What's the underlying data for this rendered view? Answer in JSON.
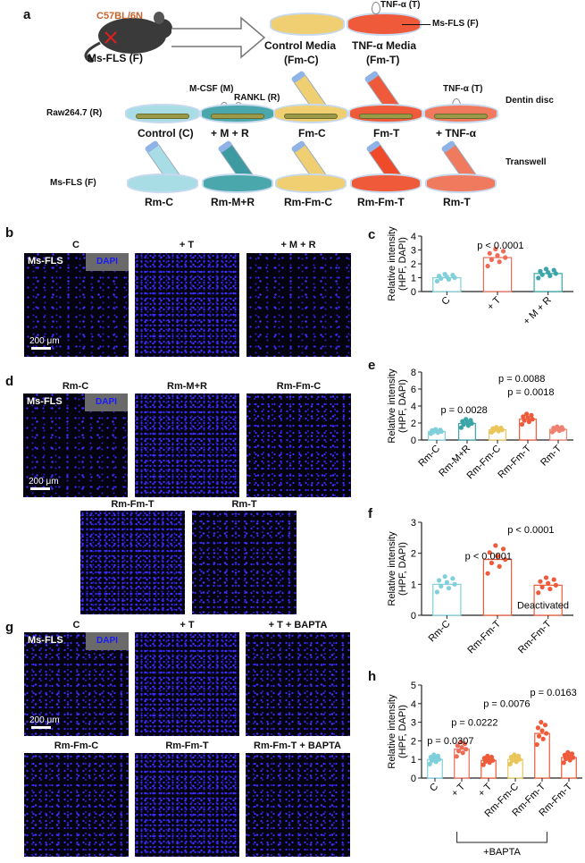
{
  "figure": {
    "panels": {
      "a": "a",
      "b": "b",
      "c": "c",
      "d": "d",
      "e": "e",
      "f": "f",
      "g": "g",
      "h": "h"
    }
  },
  "schematic": {
    "mouse_strain": "C57BL/6N",
    "mouse_label": "Ms-FLS (F)",
    "tnf_top": "TNF-α (T)",
    "msfls_arrow": "Ms-FLS (F)",
    "control_media_1": "Control Media",
    "control_media_2": "(Fm-C)",
    "tnf_media_1": "TNF-α Media",
    "tnf_media_2": "(Fm-T)",
    "mcsf": "M-CSF (M)",
    "rankl": "RANKL (R)",
    "tnf_right": "TNF-α (T)",
    "dentin": "Dentin disc",
    "raw": "Raw264.7 (R)",
    "row2": [
      "Control (C)",
      "+ M + R",
      "Fm-C",
      "Fm-T",
      "+ TNF-α"
    ],
    "msfls_row3": "Ms-FLS (F)",
    "transwell": "Transwell",
    "row3": [
      "Rm-C",
      "Rm-M+R",
      "Rm-Fm-C",
      "Rm-Fm-T",
      "Rm-T"
    ],
    "colors": {
      "control": "#a9dde6",
      "mr": "#4aa8ad",
      "fmc": "#f0cf72",
      "fmt": "#ef5a3a",
      "tnf": "#f07a5e"
    }
  },
  "micrographs": {
    "cell_label": "Ms-FLS",
    "stain_label": "DAPI",
    "scale_label": "200 μm",
    "b": [
      "C",
      "+ T",
      "+ M + R"
    ],
    "d_row1": [
      "Rm-C",
      "Rm-M+R",
      "Rm-Fm-C"
    ],
    "d_row2": [
      "Rm-Fm-T",
      "Rm-T"
    ],
    "g_row1": [
      "C",
      "+ T",
      "+ T + BAPTA"
    ],
    "g_row2": [
      "Rm-Fm-C",
      "Rm-Fm-T",
      "Rm-Fm-T + BAPTA"
    ]
  },
  "chart_data": [
    {
      "panel": "c",
      "type": "bar",
      "ylabel": "Relative intensity (HPF, DAPI)",
      "ylabel_1": "Relative intensity",
      "ylabel_2": "(HPF, DAPI)",
      "categories": [
        "C",
        "+ T",
        "+ M + R"
      ],
      "values": [
        1.0,
        2.45,
        1.3
      ],
      "colors": [
        "#7fd0db",
        "#ee6b56",
        "#3aa5a8"
      ],
      "ylim": [
        0,
        4
      ],
      "yticks": [
        0,
        1,
        2,
        3,
        4
      ],
      "annotations": [
        "p < 0.0001"
      ]
    },
    {
      "panel": "e",
      "type": "bar",
      "ylabel": "Relative intensity (HPF, DAPI)",
      "ylabel_1": "Relative intensity",
      "ylabel_2": "(HPF, DAPI)",
      "categories": [
        "Rm-C",
        "Rm-M+R",
        "Rm-Fm-C",
        "Rm-Fm-T",
        "Rm-T"
      ],
      "values": [
        1.0,
        1.95,
        1.2,
        2.45,
        1.25
      ],
      "colors": [
        "#7fd0db",
        "#3aa5a8",
        "#e9c55a",
        "#ee5a3a",
        "#f08070"
      ],
      "ylim": [
        0,
        8
      ],
      "yticks": [
        0,
        2,
        4,
        6,
        8
      ],
      "annotations": [
        "p = 0.0028",
        "p = 0.0088",
        "p = 0.0018"
      ]
    },
    {
      "panel": "f",
      "type": "bar",
      "ylabel": "Relative intensity (HPF, DAPI)",
      "ylabel_1": "Relative intensity",
      "ylabel_2": "(HPF, DAPI)",
      "categories": [
        "Rm-C",
        "Rm-Fm-T",
        "Rm-Fm-T"
      ],
      "values": [
        1.0,
        1.8,
        0.97
      ],
      "colors": [
        "#7fd0db",
        "#ee5a3a",
        "#ee5a3a"
      ],
      "ylim": [
        0,
        3
      ],
      "yticks": [
        0,
        1,
        2,
        3
      ],
      "annotations": [
        "p < 0.0001",
        "p < 0.0001",
        "Deactivated"
      ]
    },
    {
      "panel": "h",
      "type": "bar",
      "ylabel": "Relative intensity (HPF, DAPI)",
      "ylabel_1": "Relative intensity",
      "ylabel_2": "(HPF, DAPI)",
      "categories": [
        "C",
        "+ T",
        "+ T",
        "Rm-Fm-C",
        "Rm-Fm-T",
        "Rm-Fm-T"
      ],
      "values": [
        1.0,
        1.55,
        0.95,
        1.0,
        2.4,
        1.1
      ],
      "colors": [
        "#7fd0db",
        "#ee6b56",
        "#ee5a3a",
        "#e9c55a",
        "#ee5a3a",
        "#ee5a3a"
      ],
      "ylim": [
        0,
        5
      ],
      "yticks": [
        0,
        1,
        2,
        3,
        4,
        5
      ],
      "annotations": [
        "p = 0.0307",
        "p = 0.0222",
        "p = 0.0076",
        "p = 0.0163"
      ],
      "group_label": "+BAPTA"
    }
  ]
}
